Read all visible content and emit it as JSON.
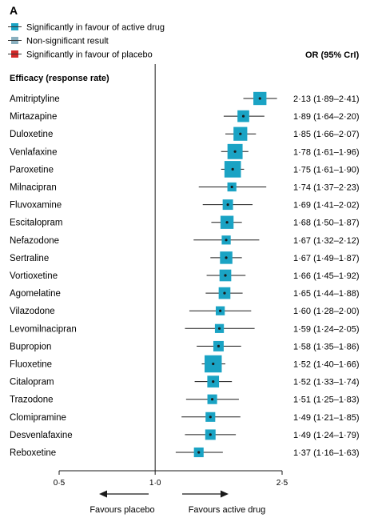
{
  "panel_label": "A",
  "legend": [
    {
      "label": "Significantly in favour of active drug",
      "color": "#1aa3c4"
    },
    {
      "label": "Non-significant result",
      "color": "#8ab0bf"
    },
    {
      "label": "Significantly in favour of placebo",
      "color": "#d42a2a"
    }
  ],
  "section_header": "Efficacy (response rate)",
  "ci_header": "OR (95% CrI)",
  "favours_left": "Favours placebo",
  "favours_right": "Favours active drug",
  "chart_data": {
    "type": "forest",
    "x_scale": "log",
    "xlim": [
      0.5,
      2.5
    ],
    "reference_line": 1.0,
    "ticks": [
      {
        "value": 0.5,
        "label": "0·5"
      },
      {
        "value": 1.0,
        "label": "1·0"
      },
      {
        "value": 2.5,
        "label": "2·5"
      }
    ],
    "rows": [
      {
        "drug": "Amitriptyline",
        "or": 2.13,
        "lo": 1.89,
        "hi": 2.41,
        "weight": 0.55,
        "ci_text": "2·13 (1·89–2·41)"
      },
      {
        "drug": "Mirtazapine",
        "or": 1.89,
        "lo": 1.64,
        "hi": 2.2,
        "weight": 0.45,
        "ci_text": "1·89 (1·64–2·20)"
      },
      {
        "drug": "Duloxetine",
        "or": 1.85,
        "lo": 1.66,
        "hi": 2.07,
        "weight": 0.6,
        "ci_text": "1·85 (1·66–2·07)"
      },
      {
        "drug": "Venlafaxine",
        "or": 1.78,
        "lo": 1.61,
        "hi": 1.96,
        "weight": 0.7,
        "ci_text": "1·78 (1·61–1·96)"
      },
      {
        "drug": "Paroxetine",
        "or": 1.75,
        "lo": 1.61,
        "hi": 1.9,
        "weight": 0.8,
        "ci_text": "1·75 (1·61–1·90)"
      },
      {
        "drug": "Milnacipran",
        "or": 1.74,
        "lo": 1.37,
        "hi": 2.23,
        "weight": 0.25,
        "ci_text": "1·74 (1·37–2·23)"
      },
      {
        "drug": "Fluvoxamine",
        "or": 1.69,
        "lo": 1.41,
        "hi": 2.02,
        "weight": 0.35,
        "ci_text": "1·69 (1·41–2·02)"
      },
      {
        "drug": "Escitalopram",
        "or": 1.68,
        "lo": 1.5,
        "hi": 1.87,
        "weight": 0.55,
        "ci_text": "1·68 (1·50–1·87)"
      },
      {
        "drug": "Nefazodone",
        "or": 1.67,
        "lo": 1.32,
        "hi": 2.12,
        "weight": 0.25,
        "ci_text": "1·67 (1·32–2·12)"
      },
      {
        "drug": "Sertraline",
        "or": 1.67,
        "lo": 1.49,
        "hi": 1.87,
        "weight": 0.5,
        "ci_text": "1·67 (1·49–1·87)"
      },
      {
        "drug": "Vortioxetine",
        "or": 1.66,
        "lo": 1.45,
        "hi": 1.92,
        "weight": 0.45,
        "ci_text": "1·66 (1·45–1·92)"
      },
      {
        "drug": "Agomelatine",
        "or": 1.65,
        "lo": 1.44,
        "hi": 1.88,
        "weight": 0.45,
        "ci_text": "1·65 (1·44–1·88)"
      },
      {
        "drug": "Vilazodone",
        "or": 1.6,
        "lo": 1.28,
        "hi": 2.0,
        "weight": 0.25,
        "ci_text": "1·60 (1·28–2·00)"
      },
      {
        "drug": "Levomilnacipran",
        "or": 1.59,
        "lo": 1.24,
        "hi": 2.05,
        "weight": 0.25,
        "ci_text": "1·59 (1·24–2·05)"
      },
      {
        "drug": "Bupropion",
        "or": 1.58,
        "lo": 1.35,
        "hi": 1.86,
        "weight": 0.35,
        "ci_text": "1·58 (1·35–1·86)"
      },
      {
        "drug": "Fluoxetine",
        "or": 1.52,
        "lo": 1.4,
        "hi": 1.66,
        "weight": 0.85,
        "ci_text": "1·52 (1·40–1·66)"
      },
      {
        "drug": "Citalopram",
        "or": 1.52,
        "lo": 1.33,
        "hi": 1.74,
        "weight": 0.45,
        "ci_text": "1·52 (1·33–1·74)"
      },
      {
        "drug": "Trazodone",
        "or": 1.51,
        "lo": 1.25,
        "hi": 1.83,
        "weight": 0.3,
        "ci_text": "1·51 (1·25–1·83)"
      },
      {
        "drug": "Clomipramine",
        "or": 1.49,
        "lo": 1.21,
        "hi": 1.85,
        "weight": 0.3,
        "ci_text": "1·49 (1·21–1·85)"
      },
      {
        "drug": "Desvenlafaxine",
        "or": 1.49,
        "lo": 1.24,
        "hi": 1.79,
        "weight": 0.35,
        "ci_text": "1·49 (1·24–1·79)"
      },
      {
        "drug": "Reboxetine",
        "or": 1.37,
        "lo": 1.16,
        "hi": 1.63,
        "weight": 0.3,
        "ci_text": "1·37 (1·16–1·63)"
      }
    ]
  }
}
